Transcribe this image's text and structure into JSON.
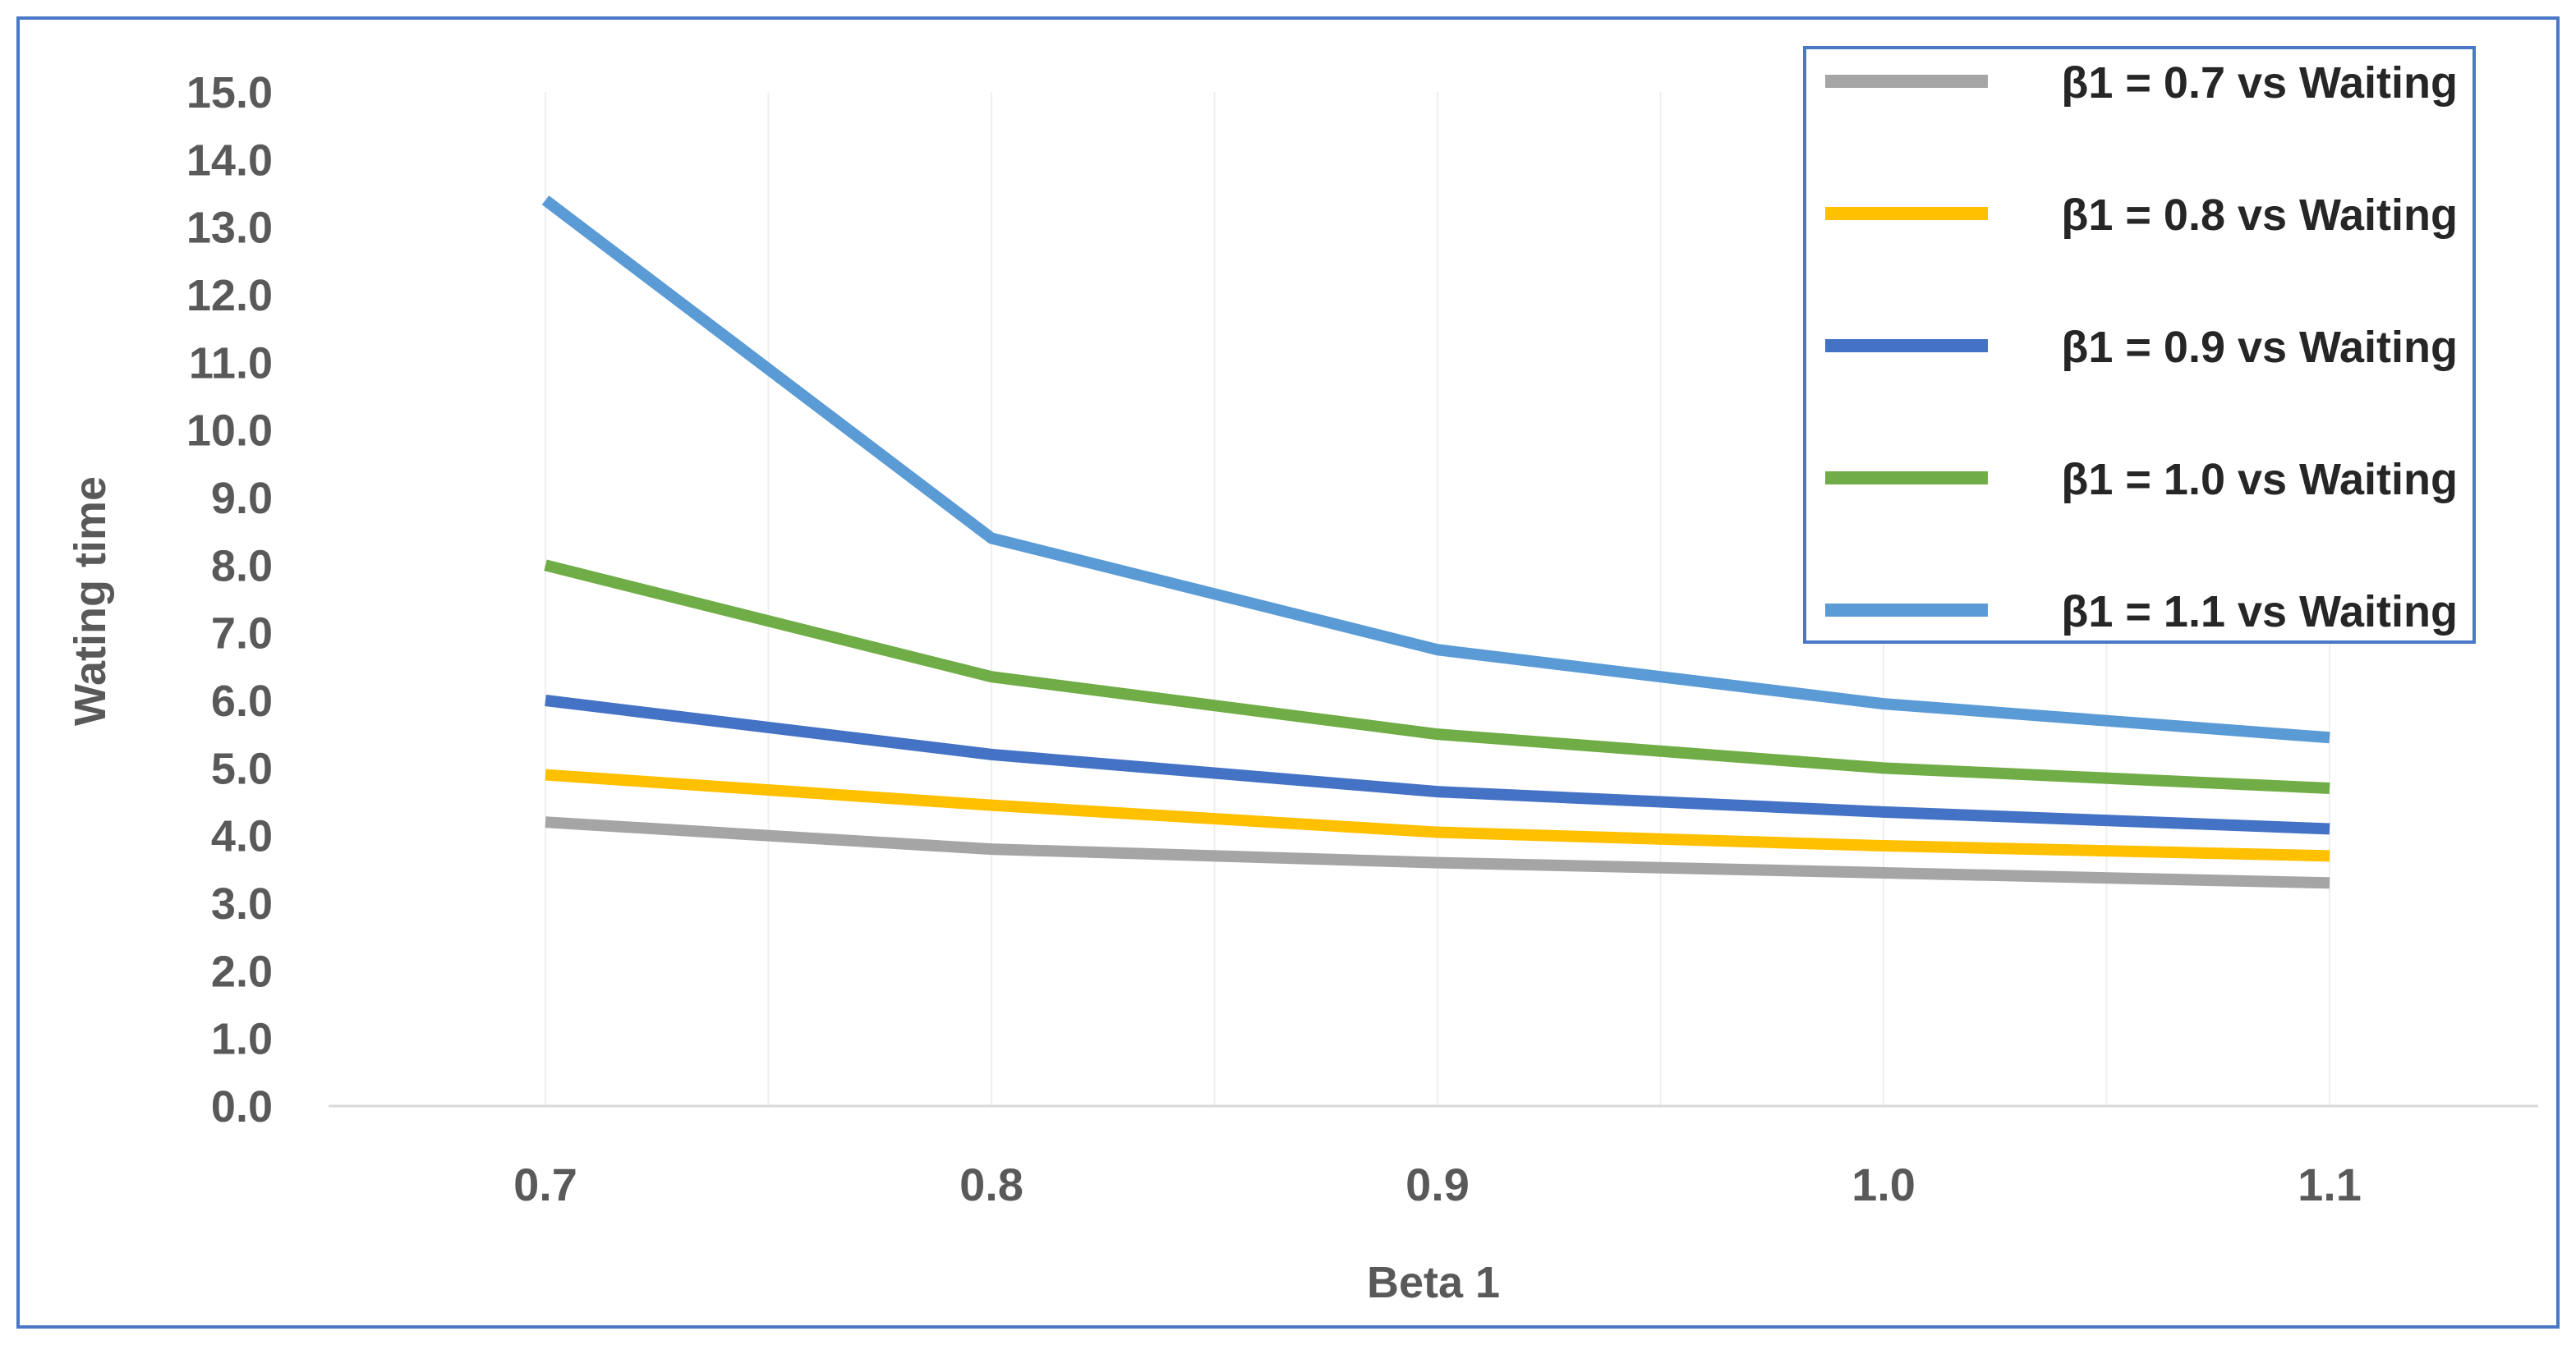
{
  "chart_data": {
    "type": "line",
    "title": "",
    "xlabel": "Beta 1",
    "ylabel": "Wating time",
    "categories": [
      "0.7",
      "0.8",
      "0.9",
      "1.0",
      "1.1"
    ],
    "ylim": [
      0,
      15
    ],
    "ytick_labels": [
      "0.0",
      "1.0",
      "2.0",
      "3.0",
      "4.0",
      "5.0",
      "6.0",
      "7.0",
      "8.0",
      "9.0",
      "10.0",
      "11.0",
      "12.0",
      "13.0",
      "14.0",
      "15.0"
    ],
    "grid": true,
    "legend_position": "top-right",
    "series": [
      {
        "name": "β1 = 0.7 vs Waiting",
        "color": "#a5a5a5",
        "values": [
          4.2,
          3.8,
          3.6,
          3.45,
          3.3
        ]
      },
      {
        "name": "β1 = 0.8 vs Waiting",
        "color": "#ffc000",
        "values": [
          4.9,
          4.45,
          4.05,
          3.85,
          3.7
        ]
      },
      {
        "name": "β1 = 0.9 vs Waiting",
        "color": "#4472c4",
        "values": [
          6.0,
          5.2,
          4.65,
          4.35,
          4.1
        ]
      },
      {
        "name": "β1 = 1.0 vs Waiting",
        "color": "#70ad47",
        "values": [
          8.0,
          6.35,
          5.5,
          5.0,
          4.7
        ]
      },
      {
        "name": "β1 = 1.1 vs Waiting",
        "color": "#5b9bd5",
        "values": [
          13.4,
          8.4,
          6.75,
          5.95,
          5.45
        ]
      }
    ]
  }
}
